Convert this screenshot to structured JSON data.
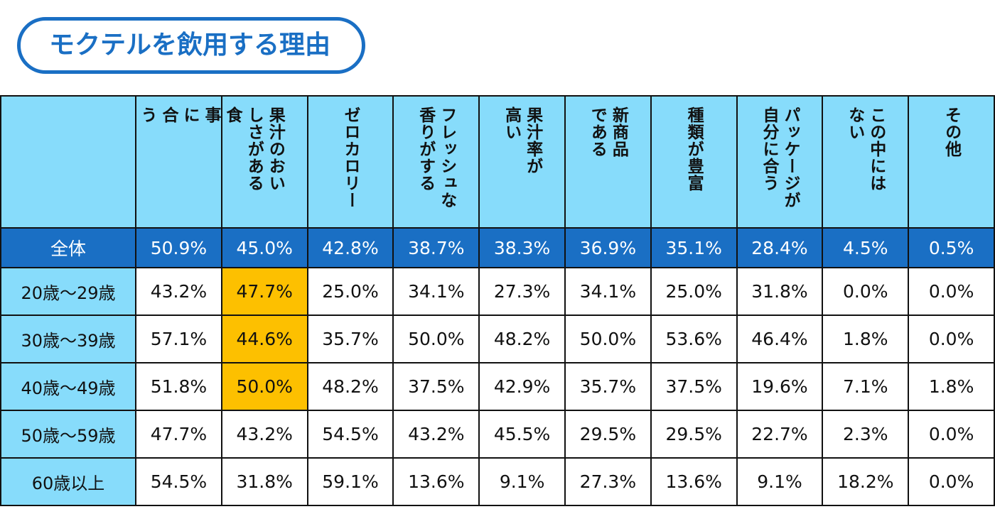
{
  "title": "モクテルを飲用する理由",
  "colors": {
    "title_border": "#1a6fc4",
    "header_bg": "#87dcfb",
    "total_row_bg": "#1a6fc4",
    "highlight": "#fdc000"
  },
  "chart_data": {
    "type": "table",
    "title": "モクテルを飲用する理由",
    "columns": [
      {
        "lines": [
          "食",
          "事",
          "に",
          "合",
          "う"
        ]
      },
      {
        "lines": [
          "果汁のおい",
          "しさがある"
        ]
      },
      {
        "lines": [
          "ゼロカロリー"
        ]
      },
      {
        "lines": [
          "フレッシュな",
          "香りがする"
        ]
      },
      {
        "lines": [
          "果汁率が",
          "高い"
        ]
      },
      {
        "lines": [
          "新商品",
          "である"
        ]
      },
      {
        "lines": [
          "種類が豊富"
        ]
      },
      {
        "lines": [
          "パッケージが",
          "自分に合う"
        ]
      },
      {
        "lines": [
          "この中には",
          "ない"
        ]
      },
      {
        "lines": [
          "その他"
        ]
      }
    ],
    "total": {
      "label": "全体",
      "values": [
        "50.9%",
        "45.0%",
        "42.8%",
        "38.7%",
        "38.3%",
        "36.9%",
        "35.1%",
        "28.4%",
        "4.5%",
        "0.5%"
      ]
    },
    "rows": [
      {
        "label": "20歳～29歳",
        "values": [
          "43.2%",
          "47.7%",
          "25.0%",
          "34.1%",
          "27.3%",
          "34.1%",
          "25.0%",
          "31.8%",
          "0.0%",
          "0.0%"
        ],
        "highlight": [
          1
        ]
      },
      {
        "label": "30歳～39歳",
        "values": [
          "57.1%",
          "44.6%",
          "35.7%",
          "50.0%",
          "48.2%",
          "50.0%",
          "53.6%",
          "46.4%",
          "1.8%",
          "0.0%"
        ],
        "highlight": [
          1
        ]
      },
      {
        "label": "40歳～49歳",
        "values": [
          "51.8%",
          "50.0%",
          "48.2%",
          "37.5%",
          "42.9%",
          "35.7%",
          "37.5%",
          "19.6%",
          "7.1%",
          "1.8%"
        ],
        "highlight": [
          1
        ]
      },
      {
        "label": "50歳～59歳",
        "values": [
          "47.7%",
          "43.2%",
          "54.5%",
          "43.2%",
          "45.5%",
          "29.5%",
          "29.5%",
          "22.7%",
          "2.3%",
          "0.0%"
        ],
        "highlight": []
      },
      {
        "label": "60歳以上",
        "values": [
          "54.5%",
          "31.8%",
          "59.1%",
          "13.6%",
          "9.1%",
          "27.3%",
          "13.6%",
          "9.1%",
          "18.2%",
          "0.0%"
        ],
        "highlight": []
      }
    ]
  }
}
